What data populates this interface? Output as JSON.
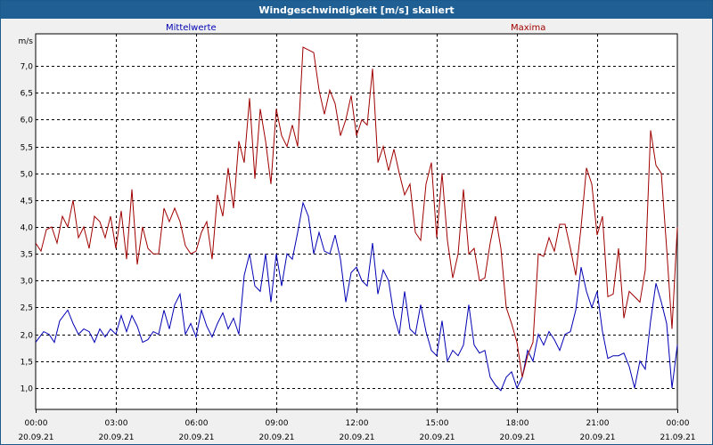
{
  "window": {
    "title": "Windgeschwindigkeit [m/s] skaliert"
  },
  "chart_data": {
    "type": "line",
    "title": "Windgeschwindigkeit [m/s] skaliert",
    "ylabel": "m/s",
    "xlabel": "",
    "ylim": [
      0.6,
      7.6
    ],
    "xlim": [
      0,
      24
    ],
    "y_ticks": [
      "1,0",
      "1,5",
      "2,0",
      "2,5",
      "3,0",
      "3,5",
      "4,0",
      "4,5",
      "5,0",
      "5,5",
      "6,0",
      "6,5",
      "7,0"
    ],
    "x_ticks": [
      {
        "time": "00:00",
        "date": "20.09.21"
      },
      {
        "time": "03:00",
        "date": "20.09.21"
      },
      {
        "time": "06:00",
        "date": "20.09.21"
      },
      {
        "time": "09:00",
        "date": "20.09.21"
      },
      {
        "time": "12:00",
        "date": "20.09.21"
      },
      {
        "time": "15:00",
        "date": "20.09.21"
      },
      {
        "time": "18:00",
        "date": "20.09.21"
      },
      {
        "time": "21:00",
        "date": "20.09.21"
      },
      {
        "time": "00:00",
        "date": "21.09.21"
      }
    ],
    "grid": true,
    "series": [
      {
        "name": "Mittelwerte",
        "color": "#0000b4",
        "points": [
          [
            0.0,
            1.85
          ],
          [
            0.3,
            2.05
          ],
          [
            0.5,
            2.0
          ],
          [
            0.7,
            1.85
          ],
          [
            0.9,
            2.25
          ],
          [
            1.2,
            2.45
          ],
          [
            1.4,
            2.2
          ],
          [
            1.6,
            2.0
          ],
          [
            1.8,
            2.1
          ],
          [
            2.0,
            2.05
          ],
          [
            2.2,
            1.85
          ],
          [
            2.4,
            2.1
          ],
          [
            2.6,
            1.95
          ],
          [
            2.8,
            2.1
          ],
          [
            3.0,
            2.0
          ],
          [
            3.2,
            2.35
          ],
          [
            3.4,
            2.05
          ],
          [
            3.6,
            2.35
          ],
          [
            3.8,
            2.15
          ],
          [
            4.0,
            1.85
          ],
          [
            4.2,
            1.9
          ],
          [
            4.4,
            2.05
          ],
          [
            4.6,
            2.0
          ],
          [
            4.8,
            2.45
          ],
          [
            5.0,
            2.1
          ],
          [
            5.2,
            2.55
          ],
          [
            5.4,
            2.75
          ],
          [
            5.6,
            2.0
          ],
          [
            5.8,
            2.2
          ],
          [
            6.0,
            1.95
          ],
          [
            6.2,
            2.45
          ],
          [
            6.4,
            2.15
          ],
          [
            6.6,
            1.95
          ],
          [
            6.8,
            2.2
          ],
          [
            7.0,
            2.4
          ],
          [
            7.2,
            2.1
          ],
          [
            7.4,
            2.3
          ],
          [
            7.6,
            2.0
          ],
          [
            7.8,
            3.1
          ],
          [
            8.0,
            3.5
          ],
          [
            8.2,
            2.9
          ],
          [
            8.4,
            2.8
          ],
          [
            8.6,
            3.5
          ],
          [
            8.8,
            2.6
          ],
          [
            9.0,
            3.5
          ],
          [
            9.2,
            2.9
          ],
          [
            9.4,
            3.5
          ],
          [
            9.6,
            3.4
          ],
          [
            9.8,
            3.9
          ],
          [
            10.0,
            4.45
          ],
          [
            10.2,
            4.2
          ],
          [
            10.4,
            3.5
          ],
          [
            10.6,
            3.9
          ],
          [
            10.8,
            3.55
          ],
          [
            11.0,
            3.5
          ],
          [
            11.2,
            3.85
          ],
          [
            11.4,
            3.4
          ],
          [
            11.6,
            2.6
          ],
          [
            11.8,
            3.15
          ],
          [
            12.0,
            3.25
          ],
          [
            12.2,
            3.0
          ],
          [
            12.4,
            2.9
          ],
          [
            12.6,
            3.7
          ],
          [
            12.8,
            2.75
          ],
          [
            13.0,
            3.2
          ],
          [
            13.2,
            3.0
          ],
          [
            13.4,
            2.35
          ],
          [
            13.6,
            2.0
          ],
          [
            13.8,
            2.8
          ],
          [
            14.0,
            2.1
          ],
          [
            14.2,
            2.0
          ],
          [
            14.4,
            2.55
          ],
          [
            14.6,
            2.05
          ],
          [
            14.8,
            1.7
          ],
          [
            15.0,
            1.6
          ],
          [
            15.2,
            2.25
          ],
          [
            15.4,
            1.5
          ],
          [
            15.6,
            1.7
          ],
          [
            15.8,
            1.6
          ],
          [
            16.0,
            1.8
          ],
          [
            16.2,
            2.55
          ],
          [
            16.4,
            1.8
          ],
          [
            16.6,
            1.65
          ],
          [
            16.8,
            1.7
          ],
          [
            17.0,
            1.2
          ],
          [
            17.2,
            1.05
          ],
          [
            17.4,
            0.95
          ],
          [
            17.6,
            1.2
          ],
          [
            17.8,
            1.3
          ],
          [
            18.0,
            1.0
          ],
          [
            18.2,
            1.2
          ],
          [
            18.4,
            1.7
          ],
          [
            18.6,
            1.5
          ],
          [
            18.8,
            2.0
          ],
          [
            19.0,
            1.8
          ],
          [
            19.2,
            2.05
          ],
          [
            19.4,
            1.9
          ],
          [
            19.6,
            1.7
          ],
          [
            19.8,
            2.0
          ],
          [
            20.0,
            2.05
          ],
          [
            20.2,
            2.45
          ],
          [
            20.4,
            3.25
          ],
          [
            20.6,
            2.8
          ],
          [
            20.8,
            2.5
          ],
          [
            21.0,
            2.8
          ],
          [
            21.2,
            2.05
          ],
          [
            21.4,
            1.55
          ],
          [
            21.6,
            1.6
          ],
          [
            21.8,
            1.6
          ],
          [
            22.0,
            1.65
          ],
          [
            22.2,
            1.4
          ],
          [
            22.4,
            1.0
          ],
          [
            22.6,
            1.5
          ],
          [
            22.8,
            1.35
          ],
          [
            23.0,
            2.25
          ],
          [
            23.2,
            2.95
          ],
          [
            23.4,
            2.6
          ],
          [
            23.6,
            2.2
          ],
          [
            23.8,
            1.0
          ],
          [
            24.0,
            1.8
          ]
        ]
      },
      {
        "name": "Maxima",
        "color": "#a00000",
        "points": [
          [
            0.0,
            3.7
          ],
          [
            0.2,
            3.55
          ],
          [
            0.4,
            3.95
          ],
          [
            0.6,
            4.0
          ],
          [
            0.8,
            3.7
          ],
          [
            1.0,
            4.2
          ],
          [
            1.2,
            4.0
          ],
          [
            1.4,
            4.5
          ],
          [
            1.6,
            3.8
          ],
          [
            1.8,
            4.0
          ],
          [
            2.0,
            3.6
          ],
          [
            2.2,
            4.2
          ],
          [
            2.4,
            4.1
          ],
          [
            2.6,
            3.8
          ],
          [
            2.8,
            4.2
          ],
          [
            3.0,
            3.6
          ],
          [
            3.2,
            4.3
          ],
          [
            3.4,
            3.4
          ],
          [
            3.6,
            4.7
          ],
          [
            3.8,
            3.3
          ],
          [
            4.0,
            4.0
          ],
          [
            4.2,
            3.6
          ],
          [
            4.4,
            3.5
          ],
          [
            4.6,
            3.5
          ],
          [
            4.8,
            4.35
          ],
          [
            5.0,
            4.1
          ],
          [
            5.2,
            4.35
          ],
          [
            5.4,
            4.1
          ],
          [
            5.6,
            3.65
          ],
          [
            5.8,
            3.5
          ],
          [
            6.0,
            3.55
          ],
          [
            6.2,
            3.9
          ],
          [
            6.4,
            4.1
          ],
          [
            6.6,
            3.4
          ],
          [
            6.8,
            4.6
          ],
          [
            7.0,
            4.2
          ],
          [
            7.2,
            5.1
          ],
          [
            7.4,
            4.35
          ],
          [
            7.6,
            5.6
          ],
          [
            7.8,
            5.2
          ],
          [
            8.0,
            6.4
          ],
          [
            8.2,
            4.9
          ],
          [
            8.4,
            6.2
          ],
          [
            8.6,
            5.6
          ],
          [
            8.8,
            4.8
          ],
          [
            9.0,
            6.2
          ],
          [
            9.2,
            5.7
          ],
          [
            9.4,
            5.5
          ],
          [
            9.6,
            5.9
          ],
          [
            9.8,
            5.5
          ],
          [
            10.0,
            7.35
          ],
          [
            10.2,
            7.3
          ],
          [
            10.4,
            7.25
          ],
          [
            10.6,
            6.55
          ],
          [
            10.8,
            6.1
          ],
          [
            11.0,
            6.55
          ],
          [
            11.2,
            6.3
          ],
          [
            11.4,
            5.7
          ],
          [
            11.6,
            6.0
          ],
          [
            11.8,
            6.45
          ],
          [
            12.0,
            5.7
          ],
          [
            12.2,
            6.0
          ],
          [
            12.4,
            5.9
          ],
          [
            12.6,
            6.95
          ],
          [
            12.8,
            5.2
          ],
          [
            13.0,
            5.5
          ],
          [
            13.2,
            5.05
          ],
          [
            13.4,
            5.45
          ],
          [
            13.6,
            5.0
          ],
          [
            13.8,
            4.6
          ],
          [
            14.0,
            4.8
          ],
          [
            14.2,
            3.9
          ],
          [
            14.4,
            3.75
          ],
          [
            14.6,
            4.8
          ],
          [
            14.8,
            5.2
          ],
          [
            15.0,
            3.8
          ],
          [
            15.2,
            5.0
          ],
          [
            15.4,
            3.75
          ],
          [
            15.6,
            3.05
          ],
          [
            15.8,
            3.5
          ],
          [
            16.0,
            4.7
          ],
          [
            16.2,
            3.5
          ],
          [
            16.4,
            3.6
          ],
          [
            16.6,
            3.0
          ],
          [
            16.8,
            3.05
          ],
          [
            17.0,
            3.7
          ],
          [
            17.2,
            4.2
          ],
          [
            17.4,
            3.6
          ],
          [
            17.6,
            2.5
          ],
          [
            17.8,
            2.2
          ],
          [
            18.0,
            1.85
          ],
          [
            18.2,
            1.2
          ],
          [
            18.4,
            1.6
          ],
          [
            18.6,
            1.85
          ],
          [
            18.8,
            3.5
          ],
          [
            19.0,
            3.45
          ],
          [
            19.2,
            3.8
          ],
          [
            19.4,
            3.55
          ],
          [
            19.6,
            4.05
          ],
          [
            19.8,
            4.05
          ],
          [
            20.0,
            3.6
          ],
          [
            20.2,
            3.1
          ],
          [
            20.4,
            4.0
          ],
          [
            20.6,
            5.1
          ],
          [
            20.8,
            4.8
          ],
          [
            21.0,
            3.85
          ],
          [
            21.2,
            4.2
          ],
          [
            21.4,
            2.7
          ],
          [
            21.6,
            2.75
          ],
          [
            21.8,
            3.6
          ],
          [
            22.0,
            2.3
          ],
          [
            22.2,
            2.8
          ],
          [
            22.4,
            2.7
          ],
          [
            22.6,
            2.6
          ],
          [
            22.8,
            3.2
          ],
          [
            23.0,
            5.8
          ],
          [
            23.2,
            5.15
          ],
          [
            23.4,
            5.0
          ],
          [
            23.6,
            3.6
          ],
          [
            23.8,
            2.1
          ],
          [
            24.0,
            4.0
          ]
        ]
      }
    ]
  }
}
